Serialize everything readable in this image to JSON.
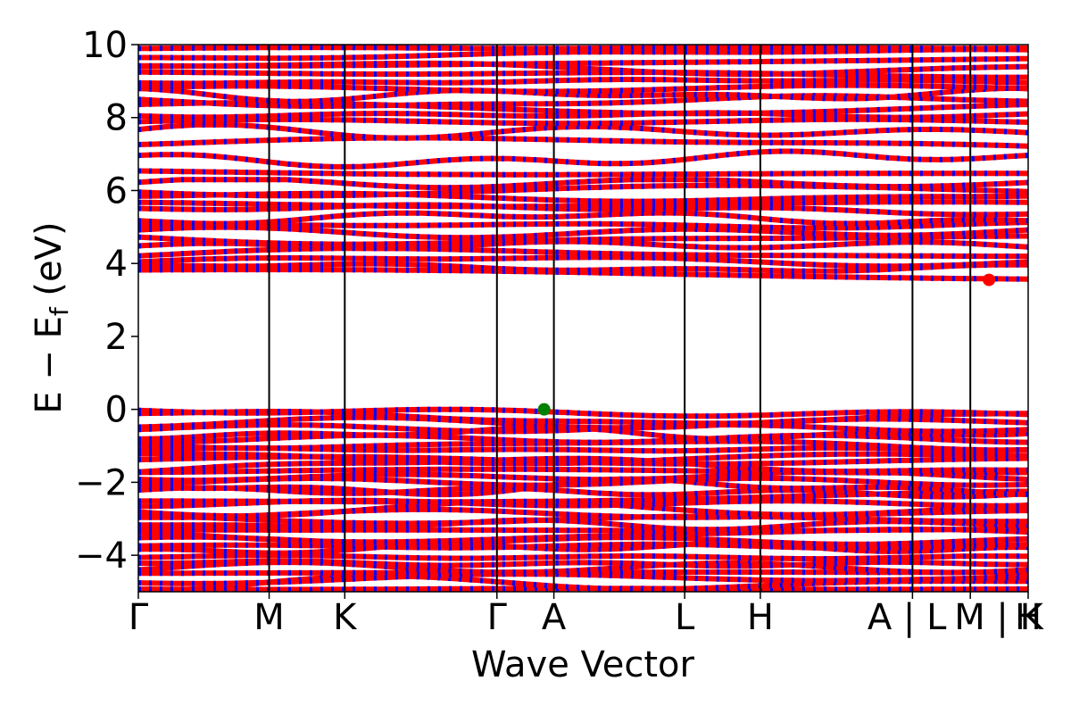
{
  "chart_data": {
    "type": "line",
    "title": "",
    "xlabel": "Wave Vector",
    "ylabel": {
      "prefix": "E − E",
      "subscript": "f",
      "suffix": " (eV)"
    },
    "ylim": [
      -5,
      10
    ],
    "y_ticks": [
      {
        "value": -4,
        "label": "−4"
      },
      {
        "value": -2,
        "label": "−2"
      },
      {
        "value": 0,
        "label": "0"
      },
      {
        "value": 2,
        "label": "2"
      },
      {
        "value": 4,
        "label": "4"
      },
      {
        "value": 6,
        "label": "6"
      },
      {
        "value": 8,
        "label": "8"
      },
      {
        "value": 10,
        "label": "10"
      }
    ],
    "x_ticks": [
      {
        "label": "Γ",
        "pos": 0.0
      },
      {
        "label": "M",
        "pos": 0.147
      },
      {
        "label": "K",
        "pos": 0.232
      },
      {
        "label": "Γ",
        "pos": 0.403
      },
      {
        "label": "A",
        "pos": 0.467
      },
      {
        "label": "L",
        "pos": 0.614
      },
      {
        "label": "H",
        "pos": 0.699
      },
      {
        "label": "A | L",
        "pos": 0.87
      },
      {
        "label": "M | K",
        "pos": 0.935
      },
      {
        "label": "H",
        "pos": 1.0
      }
    ],
    "series_colors": {
      "spin_up": "#ff0000",
      "spin_down": "#0000ff"
    },
    "markers": [
      {
        "name": "vbm",
        "x": 0.456,
        "y": 0.0,
        "color": "#008000"
      },
      {
        "name": "cbm",
        "x": 0.956,
        "y": 3.55,
        "color": "#ff0000"
      }
    ],
    "band_groups": {
      "valence": {
        "ymin": -5,
        "ymax": 0,
        "count": 34
      },
      "conduction_low": {
        "ymin": 3.6,
        "ymax": 6.3,
        "count": 14
      },
      "conduction_mid": {
        "ymin": 6.3,
        "ymax": 7.8,
        "count": 4
      },
      "conduction_high": {
        "ymin": 7.8,
        "ymax": 10,
        "count": 12
      }
    }
  }
}
